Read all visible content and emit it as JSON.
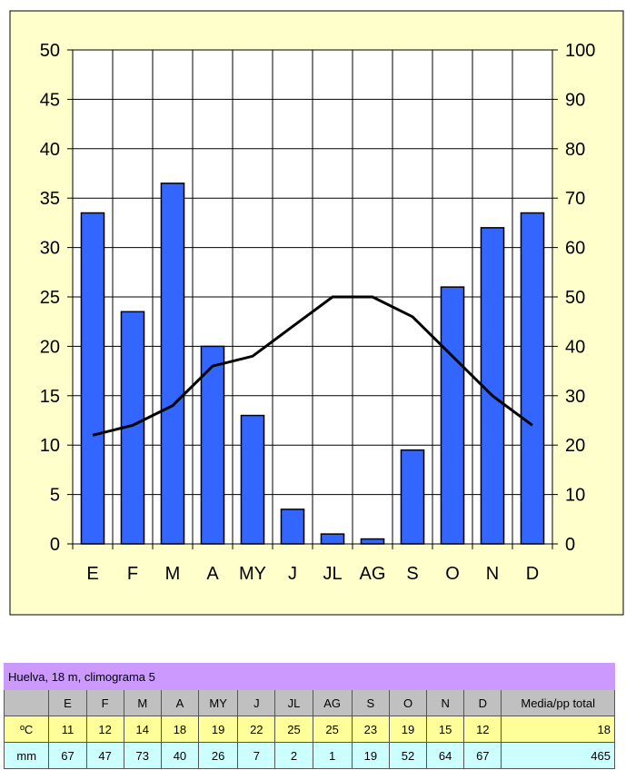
{
  "chart_data": {
    "type": "bar+line",
    "categories": [
      "E",
      "F",
      "M",
      "A",
      "MY",
      "J",
      "JL",
      "AG",
      "S",
      "O",
      "N",
      "D"
    ],
    "series": [
      {
        "values": [
          67,
          47,
          73,
          40,
          26,
          7,
          2,
          1,
          19,
          52,
          64,
          67
        ],
        "type": "bar",
        "axis": "right",
        "color": "#3366ff"
      },
      {
        "values": [
          11,
          12,
          14,
          18,
          19,
          22,
          25,
          25,
          23,
          19,
          15,
          12
        ],
        "type": "line",
        "axis": "left",
        "color": "#000000"
      }
    ],
    "left_ticks": [
      "0",
      "5",
      "10",
      "15",
      "20",
      "25",
      "30",
      "35",
      "40",
      "45",
      "50"
    ],
    "right_ticks": [
      "0",
      "10",
      "20",
      "30",
      "40",
      "50",
      "60",
      "70",
      "80",
      "90",
      "100"
    ],
    "ylim_left": [
      0,
      50
    ],
    "ylim_right": [
      0,
      100
    ],
    "grid": true,
    "background": "#ffffcc"
  },
  "table": {
    "title": "Huelva, 18 m, climograma 5",
    "header": [
      "",
      "E",
      "F",
      "M",
      "A",
      "MY",
      "J",
      "JL",
      "AG",
      "S",
      "O",
      "N",
      "D",
      "Media/pp total"
    ],
    "rows": [
      [
        "ºC",
        "11",
        "12",
        "14",
        "18",
        "19",
        "22",
        "25",
        "25",
        "23",
        "19",
        "15",
        "12",
        "18"
      ],
      [
        "mm",
        "67",
        "47",
        "73",
        "40",
        "26",
        "7",
        "2",
        "1",
        "19",
        "52",
        "64",
        "67",
        "465"
      ]
    ]
  }
}
